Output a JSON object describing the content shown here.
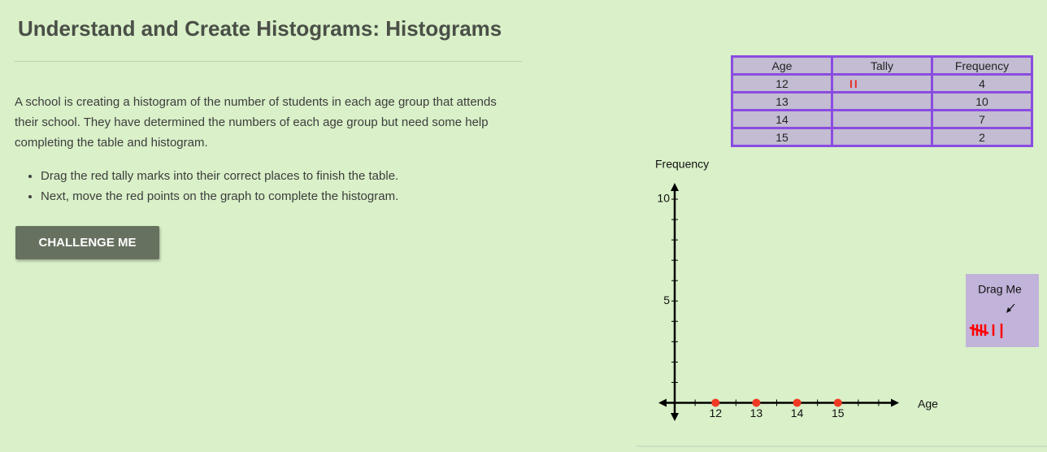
{
  "header": {
    "title": "Understand and Create Histograms: Histograms"
  },
  "intro": "A school is creating a histogram of the number of students in each age group that attends their school. They have determined the numbers of each age group but need some help completing the table and histogram.",
  "instructions": [
    "Drag the red tally marks into their correct places to finish the table.",
    "Next, move the red points on the graph to complete the histogram."
  ],
  "button": "CHALLENGE ME",
  "table": {
    "header": [
      "Age",
      "Tally",
      "Frequency"
    ],
    "rows": [
      {
        "age": 12,
        "tally": "II",
        "frequency": 4
      },
      {
        "age": 13,
        "frequency": 10
      },
      {
        "age": 14,
        "frequency": 7
      },
      {
        "age": 15,
        "frequency": 2
      }
    ]
  },
  "graph": {
    "y_label": "Frequency",
    "x_label": "Age",
    "xlim": [
      10.6,
      16.5
    ],
    "ylim": [
      -0.9,
      10.8
    ],
    "xticks": [
      12,
      13,
      14,
      15
    ],
    "yticks": [
      5,
      10
    ],
    "x_minor_ticks": [
      11,
      11.5,
      12,
      12.5,
      13,
      13.5,
      14,
      14.5,
      15,
      15.5,
      16
    ],
    "y_minor_ticks": [
      1,
      2,
      3,
      4,
      5,
      6,
      7,
      8,
      9,
      10
    ],
    "point_color": "#f03a24",
    "points": [
      {
        "x": 12,
        "y": 0
      },
      {
        "x": 13,
        "y": 0
      },
      {
        "x": 14,
        "y": 0
      },
      {
        "x": 15,
        "y": 0
      }
    ]
  },
  "drag_box": {
    "label": "Drag Me"
  }
}
